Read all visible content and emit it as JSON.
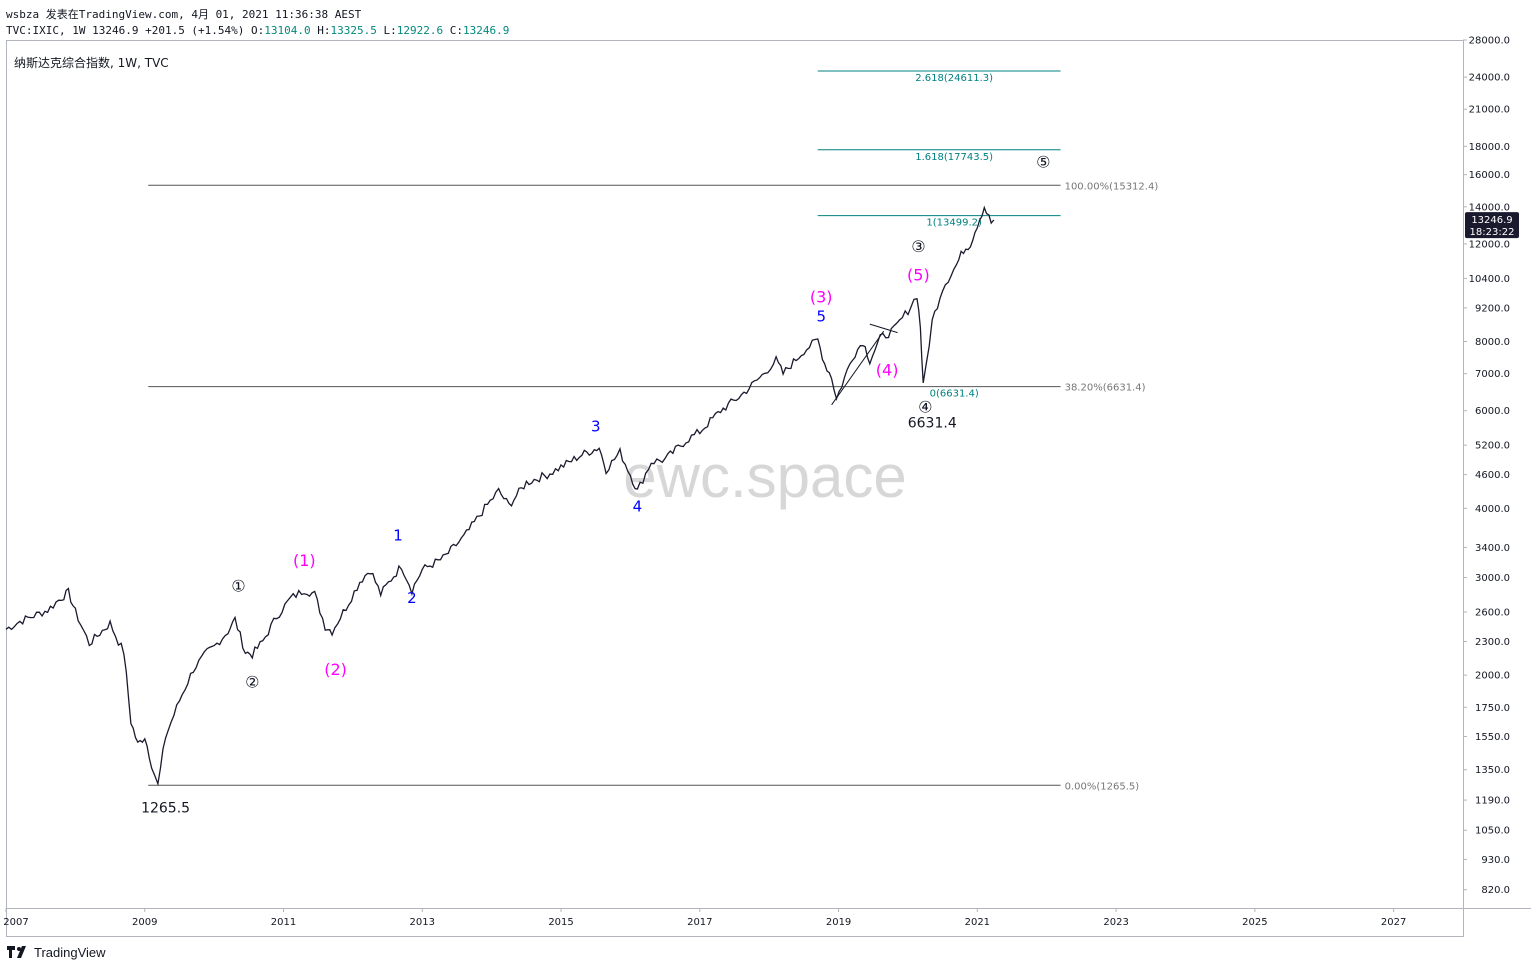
{
  "header": {
    "line1": "wsbza 发表在TradingView.com, 4月 01, 2021 11:36:38 AEST",
    "symbol_label": "TVC:IXIC, 1W 13246.9",
    "change": "+201.5 (+1.54%)",
    "open_label": "O:",
    "open_value": "13104.0",
    "high_label": "H:",
    "high_value": "13325.5",
    "low_label": "L:",
    "low_value": "12922.6",
    "close_label": "C:",
    "close_value": "13246.9"
  },
  "chart_title": "纳斯达克综合指数, 1W, TVC",
  "watermark": "ewc.space",
  "footer": {
    "brand": "TradingView"
  },
  "colors": {
    "price": "#1a1a2e",
    "wave_blue": "#0000ff",
    "wave_magenta": "#ff00ff",
    "fib_teal": "#008080",
    "grey_line": "#555555"
  },
  "chart_data": {
    "type": "line",
    "title": "纳斯达克综合指数, 1W, TVC",
    "y_scale": "log",
    "ylim": [
      760,
      28000
    ],
    "xlim": [
      2007.0,
      2028.0
    ],
    "x_tick_labels": [
      "2007",
      "2009",
      "2011",
      "2013",
      "2015",
      "2017",
      "2019",
      "2021",
      "2023",
      "2025",
      "2027"
    ],
    "y_tick_labels": [
      "28000.0",
      "24000.0",
      "21000.0",
      "18000.0",
      "16000.0",
      "14000.0",
      "12000.0",
      "10400.0",
      "9200.0",
      "8000.0",
      "7000.0",
      "6000.0",
      "5200.0",
      "4600.0",
      "4000.0",
      "3400.0",
      "3000.0",
      "2600.0",
      "2300.0",
      "2000.0",
      "1750.0",
      "1550.0",
      "1350.0",
      "1190.0",
      "1050.0",
      "930.0",
      "820.0"
    ],
    "last_price_badge": {
      "value": "13246.9",
      "timer": "18:23:22"
    },
    "series": [
      {
        "values": [
          [
            2007.0,
            2420
          ],
          [
            2007.2,
            2500
          ],
          [
            2007.4,
            2560
          ],
          [
            2007.6,
            2620
          ],
          [
            2007.8,
            2760
          ],
          [
            2007.9,
            2820
          ],
          [
            2008.0,
            2600
          ],
          [
            2008.2,
            2280
          ],
          [
            2008.35,
            2380
          ],
          [
            2008.5,
            2480
          ],
          [
            2008.62,
            2300
          ],
          [
            2008.7,
            2200
          ],
          [
            2008.8,
            1650
          ],
          [
            2008.9,
            1500
          ],
          [
            2009.0,
            1550
          ],
          [
            2009.1,
            1380
          ],
          [
            2009.19,
            1265.5
          ],
          [
            2009.3,
            1550
          ],
          [
            2009.5,
            1800
          ],
          [
            2009.7,
            2050
          ],
          [
            2009.9,
            2200
          ],
          [
            2010.0,
            2250
          ],
          [
            2010.2,
            2400
          ],
          [
            2010.3,
            2520
          ],
          [
            2010.45,
            2200
          ],
          [
            2010.55,
            2180
          ],
          [
            2010.7,
            2300
          ],
          [
            2010.9,
            2550
          ],
          [
            2011.1,
            2750
          ],
          [
            2011.3,
            2850
          ],
          [
            2011.45,
            2800
          ],
          [
            2011.6,
            2450
          ],
          [
            2011.7,
            2400
          ],
          [
            2011.9,
            2650
          ],
          [
            2012.1,
            2950
          ],
          [
            2012.25,
            3100
          ],
          [
            2012.4,
            2800
          ],
          [
            2012.55,
            2980
          ],
          [
            2012.7,
            3150
          ],
          [
            2012.85,
            2850
          ],
          [
            2013.0,
            3100
          ],
          [
            2013.3,
            3250
          ],
          [
            2013.6,
            3550
          ],
          [
            2013.9,
            4000
          ],
          [
            2014.1,
            4300
          ],
          [
            2014.25,
            4050
          ],
          [
            2014.5,
            4450
          ],
          [
            2014.8,
            4600
          ],
          [
            2015.0,
            4750
          ],
          [
            2015.3,
            5000
          ],
          [
            2015.55,
            5150
          ],
          [
            2015.65,
            4700
          ],
          [
            2015.85,
            5050
          ],
          [
            2016.0,
            4600
          ],
          [
            2016.1,
            4300
          ],
          [
            2016.3,
            4850
          ],
          [
            2016.5,
            4900
          ],
          [
            2016.8,
            5300
          ],
          [
            2017.0,
            5500
          ],
          [
            2017.3,
            6000
          ],
          [
            2017.6,
            6400
          ],
          [
            2017.9,
            6950
          ],
          [
            2018.1,
            7400
          ],
          [
            2018.2,
            7000
          ],
          [
            2018.5,
            7700
          ],
          [
            2018.7,
            8050
          ],
          [
            2018.8,
            7300
          ],
          [
            2018.9,
            6900
          ],
          [
            2018.97,
            6300
          ],
          [
            2019.2,
            7500
          ],
          [
            2019.35,
            8000
          ],
          [
            2019.45,
            7400
          ],
          [
            2019.6,
            8100
          ],
          [
            2019.8,
            8400
          ],
          [
            2020.0,
            9100
          ],
          [
            2020.13,
            9700
          ],
          [
            2020.18,
            8500
          ],
          [
            2020.22,
            6631.4
          ],
          [
            2020.35,
            8700
          ],
          [
            2020.5,
            10000
          ],
          [
            2020.7,
            11000
          ],
          [
            2020.8,
            11700
          ],
          [
            2020.9,
            12000
          ],
          [
            2021.0,
            13000
          ],
          [
            2021.1,
            14000
          ],
          [
            2021.2,
            13100
          ],
          [
            2021.24,
            13246.9
          ]
        ]
      }
    ],
    "horizontal_levels": [
      {
        "value": 15312.4,
        "label": "100.00%(15312.4)",
        "x_from": 2009.05,
        "x_to": 2022.2
      },
      {
        "value": 6631.4,
        "label": "38.20%(6631.4)",
        "x_from": 2009.05,
        "x_to": 2022.2
      },
      {
        "value": 1265.5,
        "label": "0.00%(1265.5)",
        "x_from": 2009.05,
        "x_to": 2022.2
      },
      {
        "value": 24611.3,
        "label": "2.618(24611.3)",
        "x_from": 2018.7,
        "x_to": 2022.2,
        "color": "teal"
      },
      {
        "value": 17743.5,
        "label": "1.618(17743.5)",
        "x_from": 2018.7,
        "x_to": 2022.2,
        "color": "teal"
      },
      {
        "value": 13499.2,
        "label": "1(13499.2)",
        "x_from": 2018.7,
        "x_to": 2022.2,
        "color": "teal"
      },
      {
        "value": 6631.4,
        "label": "0(6631.4)",
        "x_from": 2018.7,
        "x_to": 2022.2,
        "color": "teal",
        "label_only": true
      }
    ],
    "annotations": [
      {
        "text": "①",
        "x": 2010.35,
        "y": 2830,
        "color": "black"
      },
      {
        "text": "②",
        "x": 2010.55,
        "y": 1900,
        "color": "black"
      },
      {
        "text": "③",
        "x": 2020.15,
        "y": 11600,
        "color": "black"
      },
      {
        "text": "④",
        "x": 2020.25,
        "y": 5950,
        "color": "black"
      },
      {
        "text": "⑤",
        "x": 2021.95,
        "y": 16500,
        "color": "black"
      },
      {
        "text": "(1)",
        "x": 2011.3,
        "y": 3150,
        "color": "magenta"
      },
      {
        "text": "(2)",
        "x": 2011.75,
        "y": 2000,
        "color": "magenta"
      },
      {
        "text": "(3)",
        "x": 2018.75,
        "y": 9400,
        "color": "magenta"
      },
      {
        "text": "(4)",
        "x": 2019.7,
        "y": 6950,
        "color": "magenta"
      },
      {
        "text": "(5)",
        "x": 2020.15,
        "y": 10300,
        "color": "magenta"
      },
      {
        "text": "1",
        "x": 2012.65,
        "y": 3500,
        "color": "blue"
      },
      {
        "text": "2",
        "x": 2012.85,
        "y": 2700,
        "color": "blue"
      },
      {
        "text": "3",
        "x": 2015.5,
        "y": 5500,
        "color": "blue"
      },
      {
        "text": "4",
        "x": 2016.1,
        "y": 3950,
        "color": "blue"
      },
      {
        "text": "5",
        "x": 2018.75,
        "y": 8700,
        "color": "blue"
      },
      {
        "text": "1265.5",
        "x": 2009.3,
        "y": 1130,
        "color": "black"
      },
      {
        "text": "6631.4",
        "x": 2020.35,
        "y": 5600,
        "color": "black"
      }
    ]
  }
}
